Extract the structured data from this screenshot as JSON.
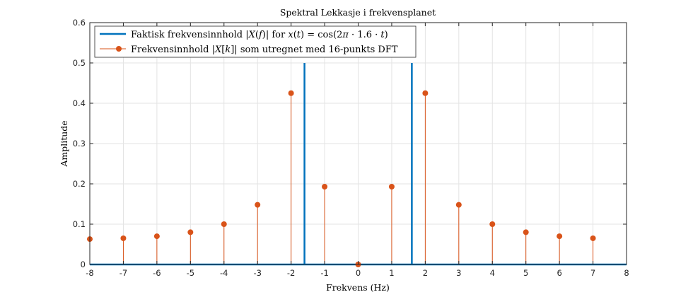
{
  "chart_data": {
    "type": "stem",
    "title": "Spektral Lekkasje i frekvensplanet",
    "xlabel": "Frekvens (Hz)",
    "ylabel": "Amplitude",
    "xlim": [
      -8,
      8
    ],
    "ylim": [
      0,
      0.6
    ],
    "xticks": [
      "-8",
      "-7",
      "-6",
      "-5",
      "-4",
      "-3",
      "-2",
      "-1",
      "0",
      "1",
      "2",
      "3",
      "4",
      "5",
      "6",
      "7",
      "8"
    ],
    "yticks": [
      "0",
      "0.1",
      "0.2",
      "0.3",
      "0.4",
      "0.5",
      "0.6"
    ],
    "grid": true,
    "legend_position": "top-left",
    "series": [
      {
        "name": "Faktisk frekvensinnhold |X(f)| for x(t) = cos(2π · 1.6 · t)",
        "kind": "line",
        "color": "#0072BD",
        "impulses": [
          {
            "x": -1.6,
            "y": 0.5
          },
          {
            "x": 1.6,
            "y": 0.5
          }
        ]
      },
      {
        "name": "Frekvensinnhold |X[k]| som utregnet med 16-punkts DFT",
        "kind": "stem",
        "color": "#D95319",
        "x": [
          -8,
          -7,
          -6,
          -5,
          -4,
          -3,
          -2,
          -1,
          0,
          1,
          2,
          3,
          4,
          5,
          6,
          7
        ],
        "y": [
          0.063,
          0.065,
          0.07,
          0.08,
          0.1,
          0.148,
          0.425,
          0.193,
          0.0,
          0.193,
          0.425,
          0.148,
          0.1,
          0.08,
          0.07,
          0.065
        ]
      }
    ]
  }
}
